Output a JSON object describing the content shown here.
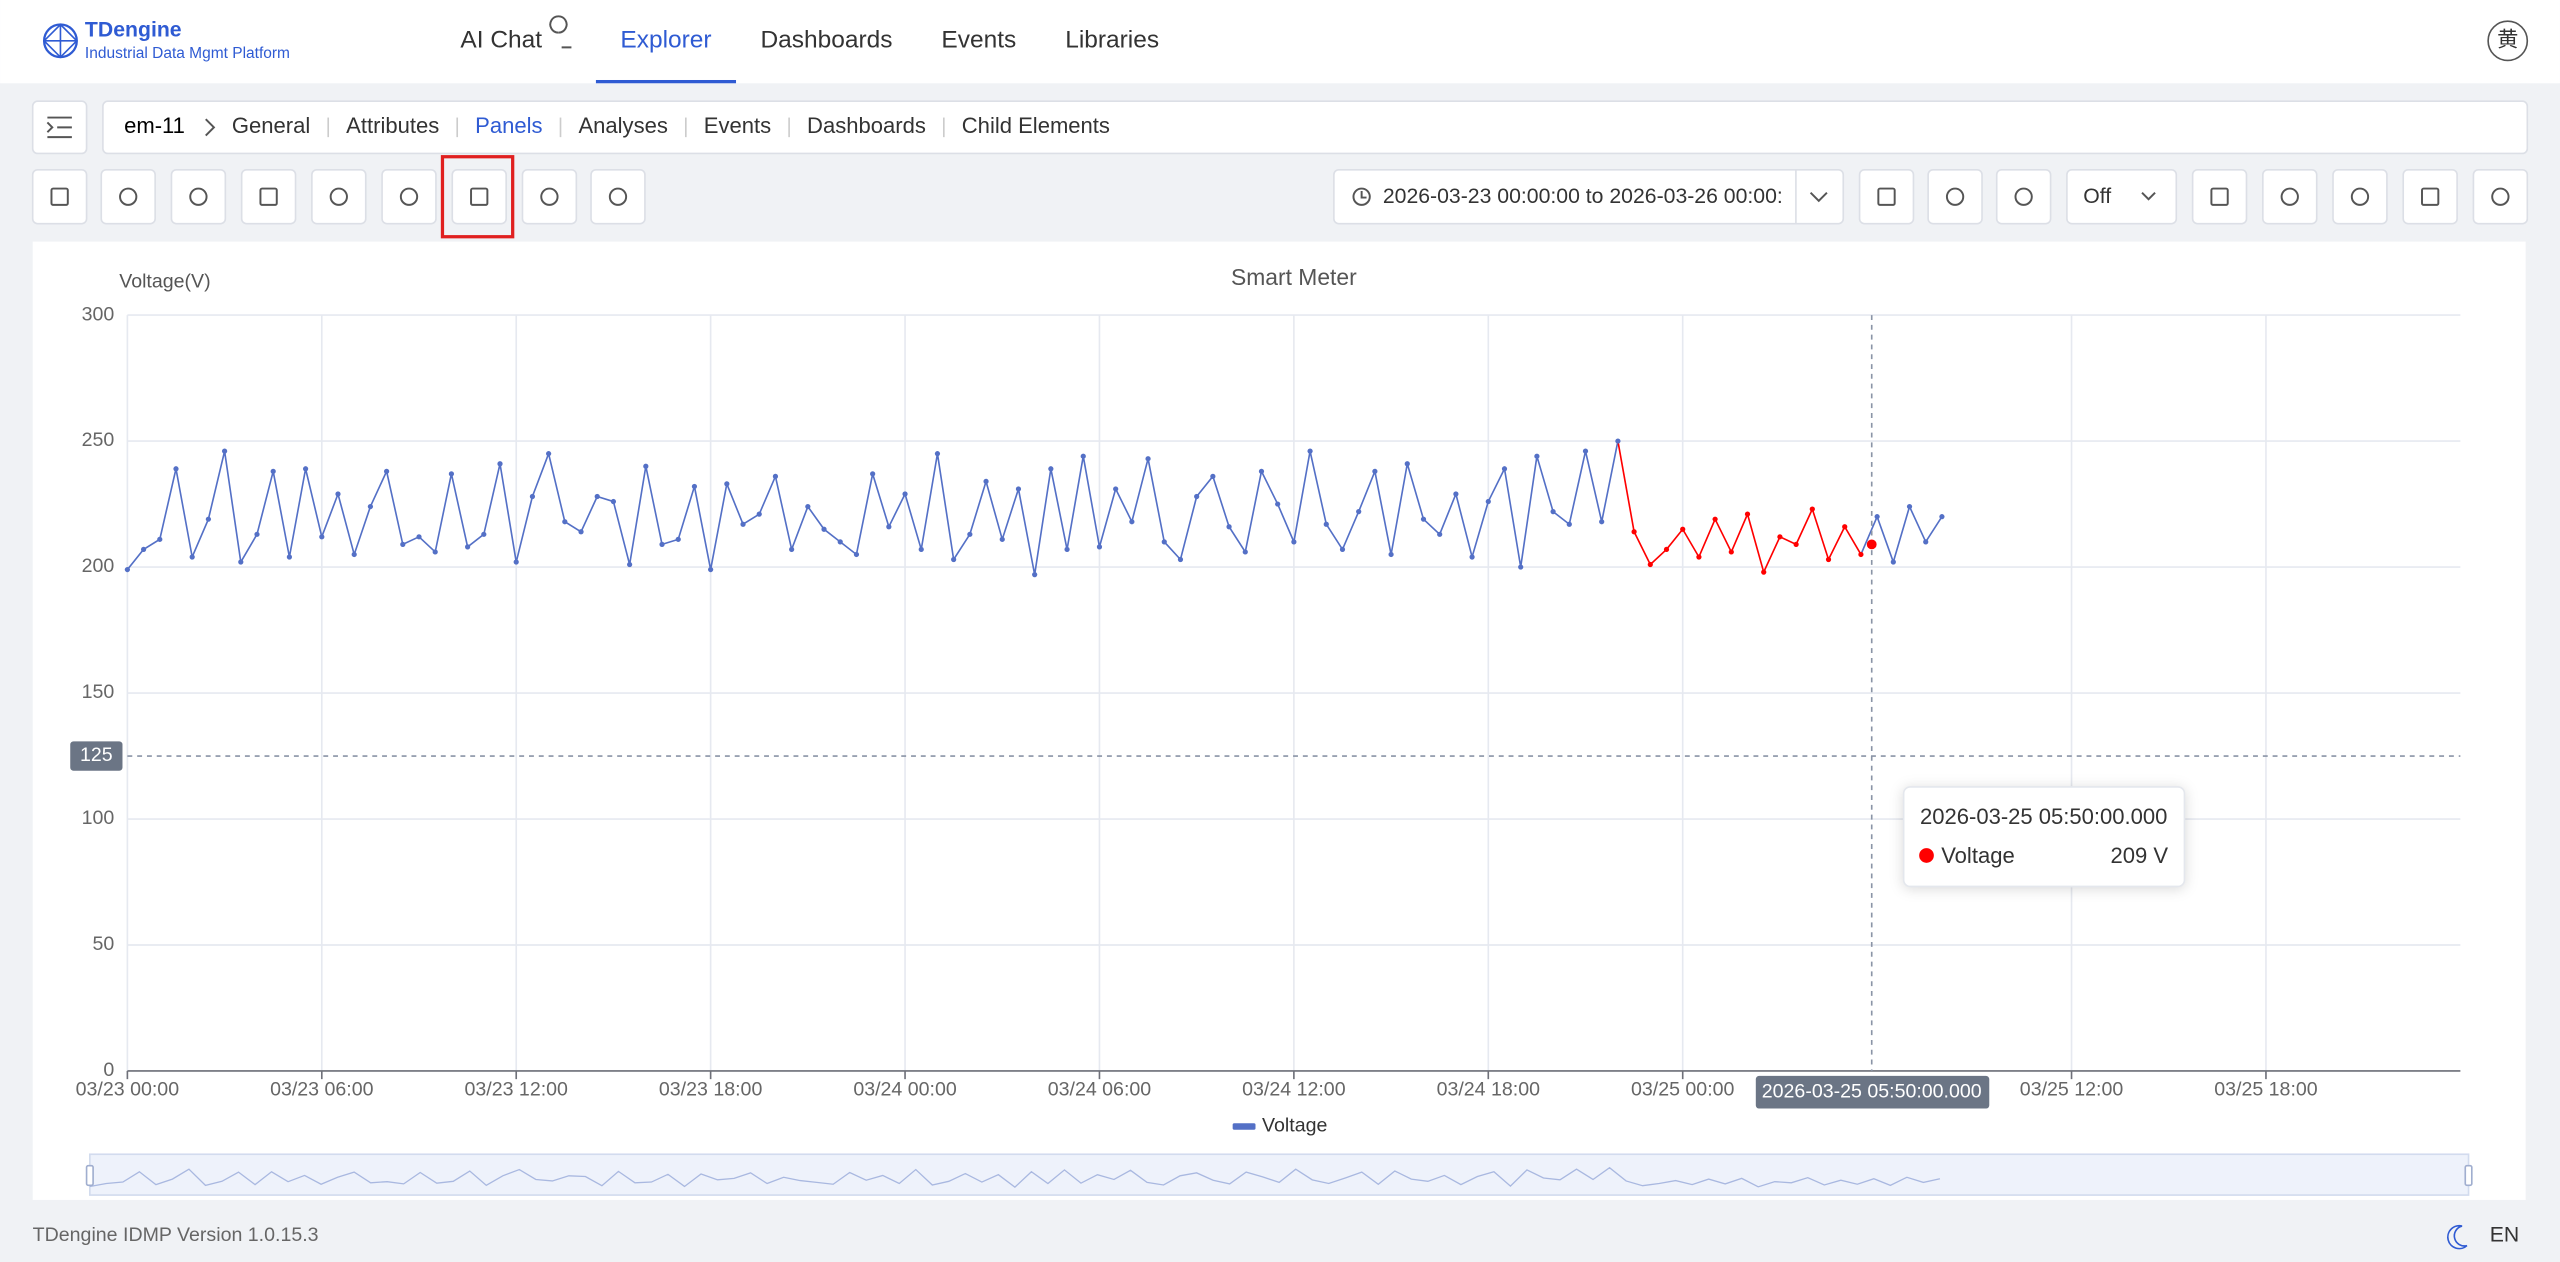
{
  "header": {
    "logo_title": "TDengine",
    "logo_subtitle": "Industrial Data Mgmt Platform",
    "nav": [
      "AI Chat",
      "Explorer",
      "Dashboards",
      "Events",
      "Libraries"
    ],
    "active_nav": 1,
    "avatar": "黄"
  },
  "breadcrumb": {
    "element": "em-11",
    "tabs": [
      "General",
      "Attributes",
      "Panels",
      "Analyses",
      "Events",
      "Dashboards",
      "Child Elements"
    ],
    "active_tab": 2
  },
  "toolbar": {
    "time_range": "2026-03-23 00:00:00 to 2026-03-26 00:00:",
    "refresh": "Off"
  },
  "chart_data": {
    "type": "line",
    "title": "Smart Meter",
    "y_label": "Voltage(V)",
    "x": [
      "2026-03-23 00:00",
      "2026-03-23 00:30",
      "2026-03-23 01:00",
      "2026-03-23 01:30",
      "2026-03-23 02:00",
      "2026-03-23 02:30",
      "2026-03-23 03:00",
      "2026-03-23 03:30",
      "2026-03-23 04:00",
      "2026-03-23 04:30",
      "2026-03-23 05:00",
      "2026-03-23 05:30",
      "2026-03-23 06:00",
      "2026-03-23 06:30",
      "2026-03-23 07:00",
      "2026-03-23 07:30",
      "2026-03-23 08:00",
      "2026-03-23 08:30",
      "2026-03-23 09:00",
      "2026-03-23 09:30",
      "2026-03-23 10:00",
      "2026-03-23 10:30",
      "2026-03-23 11:00",
      "2026-03-23 11:30",
      "2026-03-23 12:00",
      "2026-03-23 12:30",
      "2026-03-23 13:00",
      "2026-03-23 13:30",
      "2026-03-23 14:00",
      "2026-03-23 14:30",
      "2026-03-23 15:00",
      "2026-03-23 15:30",
      "2026-03-23 16:00",
      "2026-03-23 16:30",
      "2026-03-23 17:00",
      "2026-03-23 17:30",
      "2026-03-23 18:00",
      "2026-03-23 18:30",
      "2026-03-23 19:00",
      "2026-03-23 19:30",
      "2026-03-23 20:00",
      "2026-03-23 20:30",
      "2026-03-23 21:00",
      "2026-03-23 21:30",
      "2026-03-23 22:00",
      "2026-03-23 22:30",
      "2026-03-23 23:00",
      "2026-03-23 23:30",
      "2026-03-24 00:00",
      "2026-03-24 00:30",
      "2026-03-24 01:00",
      "2026-03-24 01:30",
      "2026-03-24 02:00",
      "2026-03-24 02:30",
      "2026-03-24 03:00",
      "2026-03-24 03:30",
      "2026-03-24 04:00",
      "2026-03-24 04:30",
      "2026-03-24 05:00",
      "2026-03-24 05:30",
      "2026-03-24 06:00",
      "2026-03-24 06:30",
      "2026-03-24 07:00",
      "2026-03-24 07:30",
      "2026-03-24 08:00",
      "2026-03-24 08:30",
      "2026-03-24 09:00",
      "2026-03-24 09:30",
      "2026-03-24 10:00",
      "2026-03-24 10:30",
      "2026-03-24 11:00",
      "2026-03-24 11:30",
      "2026-03-24 12:00",
      "2026-03-24 12:30",
      "2026-03-24 13:00",
      "2026-03-24 13:30",
      "2026-03-24 14:00",
      "2026-03-24 14:30",
      "2026-03-24 15:00",
      "2026-03-24 15:30",
      "2026-03-24 16:00",
      "2026-03-24 16:30",
      "2026-03-24 17:00",
      "2026-03-24 17:30",
      "2026-03-24 18:00",
      "2026-03-24 18:30",
      "2026-03-24 19:00",
      "2026-03-24 19:30",
      "2026-03-24 20:00",
      "2026-03-24 20:30",
      "2026-03-24 21:00",
      "2026-03-24 21:30",
      "2026-03-24 22:00",
      "2026-03-24 22:30",
      "2026-03-24 23:00",
      "2026-03-24 23:30",
      "2026-03-25 00:00",
      "2026-03-25 00:30",
      "2026-03-25 01:00",
      "2026-03-25 01:30",
      "2026-03-25 02:00",
      "2026-03-25 02:30",
      "2026-03-25 03:00",
      "2026-03-25 03:30",
      "2026-03-25 04:00",
      "2026-03-25 04:30",
      "2026-03-25 05:00",
      "2026-03-25 05:30",
      "2026-03-25 06:00",
      "2026-03-25 06:30",
      "2026-03-25 07:00",
      "2026-03-25 07:30",
      "2026-03-25 08:00"
    ],
    "series": [
      {
        "name": "Voltage",
        "color": "#5470c6",
        "values": [
          199,
          207,
          211,
          239,
          204,
          219,
          246,
          202,
          213,
          238,
          204,
          239,
          212,
          229,
          205,
          224,
          238,
          209,
          212,
          206,
          237,
          208,
          213,
          241,
          202,
          228,
          245,
          218,
          214,
          228,
          226,
          201,
          240,
          209,
          211,
          232,
          199,
          233,
          217,
          221,
          236,
          207,
          224,
          215,
          210,
          205,
          237,
          216,
          229,
          207,
          245,
          203,
          213,
          234,
          211,
          231,
          197,
          239,
          207,
          244,
          208,
          231,
          218,
          243,
          210,
          203,
          228,
          236,
          216,
          206,
          238,
          225,
          210,
          246,
          217,
          207,
          222,
          238,
          205,
          241,
          219,
          213,
          229,
          204,
          226,
          239,
          200,
          244,
          222,
          217,
          246,
          218,
          250,
          214,
          201,
          207,
          215,
          204,
          219,
          206,
          221,
          198,
          212,
          209,
          223,
          203,
          216,
          205,
          220,
          202,
          224,
          210,
          220
        ]
      }
    ],
    "highlight": {
      "color": "#ff0000",
      "from": "2026-03-24 22:30",
      "to": "2026-03-25 05:30"
    },
    "xlim": [
      "2026-03-23 00:00",
      "2026-03-26 00:00"
    ],
    "xticks": [
      {
        "value": "2026-03-23 00:00",
        "label": "03/23 00:00"
      },
      {
        "value": "2026-03-23 06:00",
        "label": "03/23 06:00"
      },
      {
        "value": "2026-03-23 12:00",
        "label": "03/23 12:00"
      },
      {
        "value": "2026-03-23 18:00",
        "label": "03/23 18:00"
      },
      {
        "value": "2026-03-24 00:00",
        "label": "03/24 00:00"
      },
      {
        "value": "2026-03-24 06:00",
        "label": "03/24 06:00"
      },
      {
        "value": "2026-03-24 12:00",
        "label": "03/24 12:00"
      },
      {
        "value": "2026-03-24 18:00",
        "label": "03/24 18:00"
      },
      {
        "value": "2026-03-25 00:00",
        "label": "03/25 00:00"
      },
      {
        "value": "2026-03-25 12:00",
        "label": "03/25 12:00"
      },
      {
        "value": "2026-03-25 18:00",
        "label": "03/25 18:00"
      }
    ],
    "ylim": [
      0,
      300
    ],
    "yticks": [
      0,
      50,
      100,
      150,
      200,
      250,
      300
    ],
    "grid": true,
    "markline": 125,
    "tooltip": {
      "x": "2026-03-25 05:50:00.000",
      "series": "Voltage",
      "value": 209,
      "value_label": "209 V",
      "color": "#ff0000"
    }
  },
  "footer": {
    "version": "TDengine IDMP Version 1.0.15.3",
    "language": "EN"
  }
}
